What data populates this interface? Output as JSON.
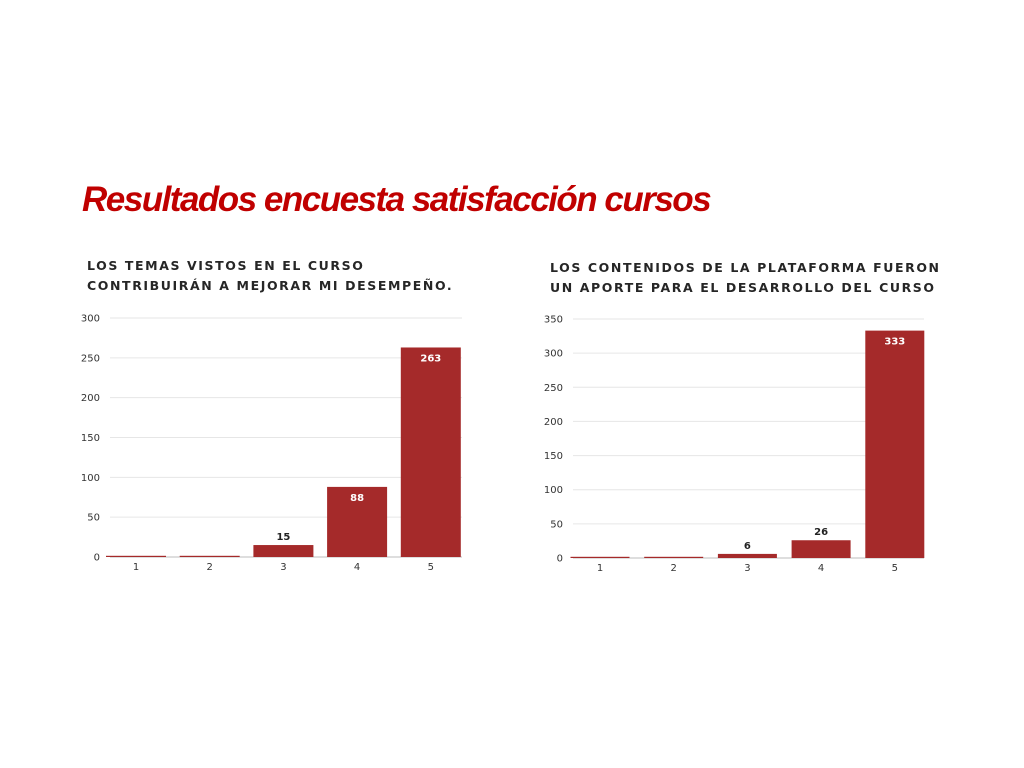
{
  "header": {
    "title": "Resultados encuesta satisfacción cursos"
  },
  "colors": {
    "title": "#c00000",
    "bar": "#a52a2a",
    "grid": "#e6e6e6",
    "axis": "#bdbdbd"
  },
  "chart_data": [
    {
      "type": "bar",
      "title_lines": [
        "LOS TEMAS VISTOS EN EL CURSO",
        "CONTRIBUIRÁN A MEJORAR MI DESEMPEÑO."
      ],
      "categories": [
        "1",
        "2",
        "3",
        "4",
        "5"
      ],
      "values": [
        0,
        0,
        15,
        88,
        263
      ],
      "value_labels": [
        "",
        "",
        "15",
        "88",
        "263"
      ],
      "ylim": [
        0,
        300
      ],
      "yticks": [
        0,
        50,
        100,
        150,
        200,
        250,
        300
      ],
      "grid": true,
      "legend": "none"
    },
    {
      "type": "bar",
      "title_lines": [
        "LOS CONTENIDOS DE LA PLATAFORMA FUERON",
        "UN APORTE PARA EL DESARROLLO DEL CURSO"
      ],
      "categories": [
        "1",
        "2",
        "3",
        "4",
        "5"
      ],
      "values": [
        0,
        0,
        6,
        26,
        333
      ],
      "value_labels": [
        "",
        "",
        "6",
        "26",
        "333"
      ],
      "ylim": [
        0,
        350
      ],
      "yticks": [
        0,
        50,
        100,
        150,
        200,
        250,
        300,
        350
      ],
      "grid": true,
      "legend": "none"
    }
  ]
}
